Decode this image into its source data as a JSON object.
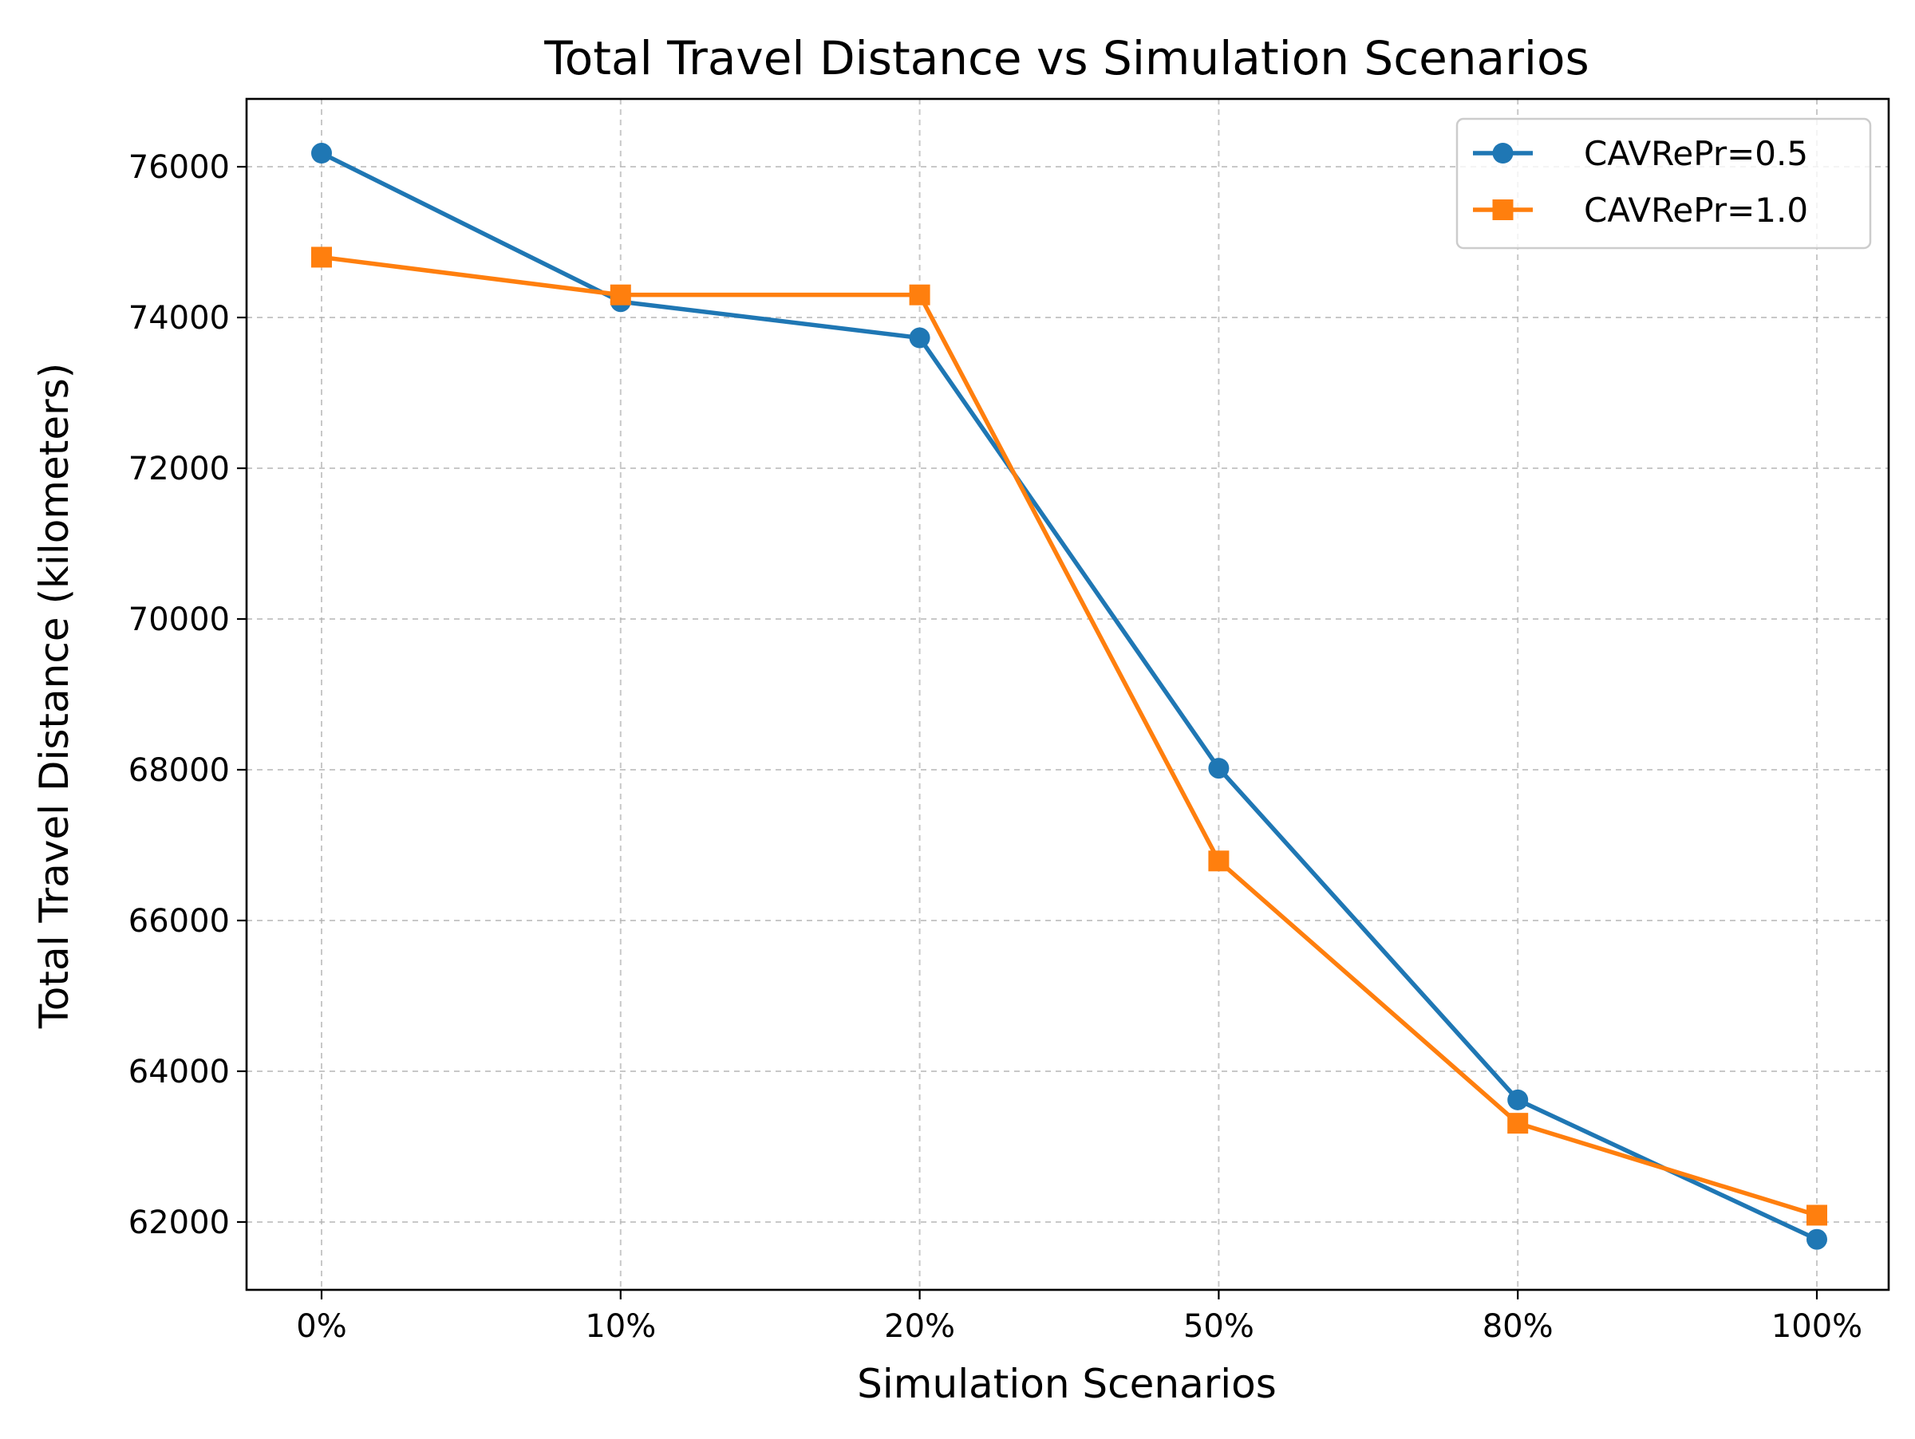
{
  "chart_data": {
    "type": "line",
    "title": "Total Travel Distance vs Simulation Scenarios",
    "xlabel": "Simulation Scenarios",
    "ylabel": "Total Travel Distance (kilometers)",
    "categories": [
      "0%",
      "10%",
      "20%",
      "50%",
      "80%",
      "100%"
    ],
    "ylim": [
      61100,
      76900
    ],
    "yticks": [
      62000,
      64000,
      66000,
      68000,
      70000,
      72000,
      74000,
      76000
    ],
    "ytick_labels": [
      "62000",
      "64000",
      "66000",
      "68000",
      "70000",
      "72000",
      "74000",
      "76000"
    ],
    "grid": true,
    "legend_position": "top-right",
    "series": [
      {
        "name": "CAVRePr=0.5",
        "color": "#1f77b4",
        "marker": "circle",
        "values": [
          76180,
          74210,
          73730,
          68020,
          63620,
          61770
        ]
      },
      {
        "name": "CAVRePr=1.0",
        "color": "#ff7f0e",
        "marker": "square",
        "values": [
          74800,
          74300,
          74300,
          66790,
          63310,
          62090
        ]
      }
    ]
  }
}
